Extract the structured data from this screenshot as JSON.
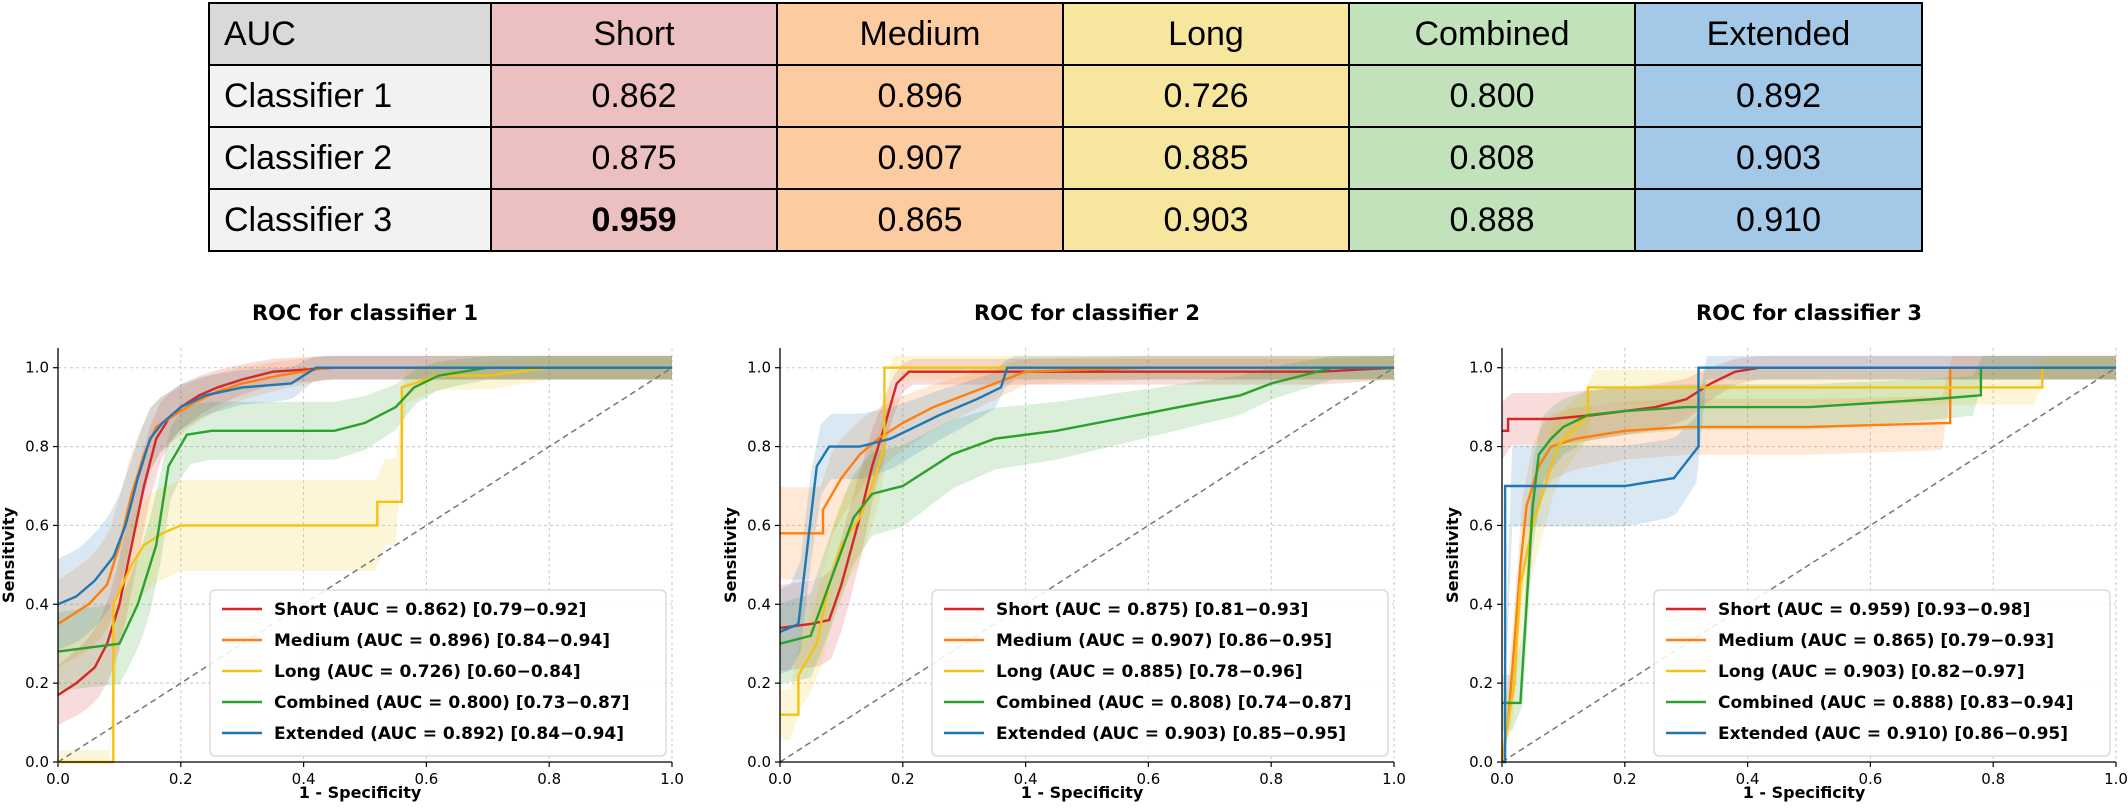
{
  "table": {
    "corner": "AUC",
    "columns": [
      {
        "label": "Short",
        "color": "#ecc0c1"
      },
      {
        "label": "Medium",
        "color": "#fdcba0"
      },
      {
        "label": "Long",
        "color": "#f7e79e"
      },
      {
        "label": "Combined",
        "color": "#c2e2bb"
      },
      {
        "label": "Extended",
        "color": "#a3c8e8"
      }
    ],
    "header_color": "#d9d9d9",
    "rowhead_color": "#f2f2f2",
    "rows": [
      {
        "label": "Classifier 1",
        "values": [
          "0.862",
          "0.896",
          "0.726",
          "0.800",
          "0.892"
        ],
        "bold_index": -1
      },
      {
        "label": "Classifier 2",
        "values": [
          "0.875",
          "0.907",
          "0.885",
          "0.808",
          "0.903"
        ],
        "bold_index": -1
      },
      {
        "label": "Classifier 3",
        "values": [
          "0.959",
          "0.865",
          "0.903",
          "0.888",
          "0.910"
        ],
        "bold_index": 0
      }
    ]
  },
  "chart_data": [
    {
      "type": "line",
      "title": "ROC for classifier 1",
      "xlabel": "1 - Specificity",
      "ylabel": "Sensitivity",
      "xlim": [
        0,
        1
      ],
      "ylim": [
        0,
        1.05
      ],
      "xticks": [
        "0.0",
        "0.2",
        "0.4",
        "0.6",
        "0.8",
        "1.0"
      ],
      "yticks": [
        "0.0",
        "0.2",
        "0.4",
        "0.6",
        "0.8",
        "1.0"
      ],
      "grid": true,
      "legend_position": "lower-right",
      "series": [
        {
          "name": "Short",
          "legend": "Short (AUC = 0.862) [0.79−0.92]",
          "color": "#d62728",
          "x": [
            0,
            0.03,
            0.06,
            0.08,
            0.1,
            0.12,
            0.14,
            0.16,
            0.18,
            0.2,
            0.23,
            0.26,
            0.3,
            0.35,
            0.45,
            1.0
          ],
          "y": [
            0.17,
            0.2,
            0.24,
            0.3,
            0.4,
            0.55,
            0.7,
            0.82,
            0.87,
            0.9,
            0.93,
            0.95,
            0.97,
            0.99,
            1.0,
            1.0
          ]
        },
        {
          "name": "Medium",
          "legend": "Medium (AUC = 0.896) [0.84−0.94]",
          "color": "#ff7f0e",
          "x": [
            0,
            0.02,
            0.05,
            0.08,
            0.1,
            0.12,
            0.14,
            0.16,
            0.19,
            0.22,
            0.26,
            0.3,
            0.36,
            0.44,
            1.0
          ],
          "y": [
            0.35,
            0.37,
            0.4,
            0.45,
            0.55,
            0.68,
            0.78,
            0.85,
            0.88,
            0.91,
            0.94,
            0.96,
            0.98,
            1.0,
            1.0
          ]
        },
        {
          "name": "Long",
          "legend": "Long (AUC = 0.726) [0.60−0.84]",
          "color": "#f5c211",
          "x": [
            0,
            0.09,
            0.09,
            0.12,
            0.14,
            0.17,
            0.2,
            0.2,
            0.52,
            0.52,
            0.56,
            0.56,
            0.62,
            0.7,
            0.8,
            1.0
          ],
          "y": [
            0,
            0,
            0.4,
            0.5,
            0.55,
            0.58,
            0.6,
            0.6,
            0.6,
            0.66,
            0.66,
            0.95,
            0.98,
            0.98,
            1.0,
            1.0
          ]
        },
        {
          "name": "Combined",
          "legend": "Combined (AUC = 0.800) [0.73−0.87]",
          "color": "#2ca02c",
          "x": [
            0,
            0.1,
            0.13,
            0.16,
            0.18,
            0.21,
            0.25,
            0.3,
            0.45,
            0.5,
            0.55,
            0.58,
            0.62,
            0.7,
            1.0
          ],
          "y": [
            0.28,
            0.3,
            0.4,
            0.55,
            0.75,
            0.83,
            0.84,
            0.84,
            0.84,
            0.86,
            0.9,
            0.95,
            0.98,
            1.0,
            1.0
          ]
        },
        {
          "name": "Extended",
          "legend": "Extended (AUC = 0.892) [0.84−0.94]",
          "color": "#1f77b4",
          "x": [
            0,
            0.03,
            0.06,
            0.09,
            0.11,
            0.13,
            0.15,
            0.17,
            0.2,
            0.24,
            0.3,
            0.38,
            0.42,
            1.0
          ],
          "y": [
            0.4,
            0.42,
            0.46,
            0.52,
            0.6,
            0.72,
            0.82,
            0.86,
            0.9,
            0.93,
            0.95,
            0.96,
            1.0,
            1.0
          ]
        }
      ]
    },
    {
      "type": "line",
      "title": "ROC for classifier 2",
      "xlabel": "1 - Specificity",
      "ylabel": "Sensitivity",
      "xlim": [
        0,
        1
      ],
      "ylim": [
        0,
        1.05
      ],
      "xticks": [
        "0.0",
        "0.2",
        "0.4",
        "0.6",
        "0.8",
        "1.0"
      ],
      "yticks": [
        "0.0",
        "0.2",
        "0.4",
        "0.6",
        "0.8",
        "1.0"
      ],
      "grid": true,
      "legend_position": "lower-right",
      "series": [
        {
          "name": "Short",
          "legend": "Short (AUC = 0.875) [0.81−0.93]",
          "color": "#d62728",
          "x": [
            0,
            0.05,
            0.08,
            0.1,
            0.13,
            0.15,
            0.17,
            0.19,
            0.21,
            0.25,
            0.4,
            0.88,
            1.0
          ],
          "y": [
            0.34,
            0.35,
            0.36,
            0.45,
            0.62,
            0.75,
            0.85,
            0.96,
            0.99,
            0.99,
            0.99,
            0.99,
            1.0
          ]
        },
        {
          "name": "Medium",
          "legend": "Medium (AUC = 0.907) [0.86−0.95]",
          "color": "#ff7f0e",
          "x": [
            0,
            0.07,
            0.07,
            0.1,
            0.13,
            0.16,
            0.2,
            0.25,
            0.3,
            0.35,
            0.4,
            0.6,
            1.0
          ],
          "y": [
            0.58,
            0.58,
            0.64,
            0.72,
            0.78,
            0.82,
            0.86,
            0.9,
            0.93,
            0.96,
            0.99,
            1.0,
            1.0
          ]
        },
        {
          "name": "Long",
          "legend": "Long (AUC = 0.885) [0.78−0.96]",
          "color": "#f5c211",
          "x": [
            0,
            0.03,
            0.03,
            0.06,
            0.08,
            0.1,
            0.13,
            0.15,
            0.17,
            0.17,
            0.4,
            1.0
          ],
          "y": [
            0.12,
            0.12,
            0.22,
            0.3,
            0.45,
            0.55,
            0.62,
            0.7,
            0.8,
            1.0,
            1.0,
            1.0
          ]
        },
        {
          "name": "Combined",
          "legend": "Combined (AUC = 0.808) [0.74−0.87]",
          "color": "#2ca02c",
          "x": [
            0,
            0.05,
            0.08,
            0.12,
            0.15,
            0.2,
            0.28,
            0.35,
            0.45,
            0.55,
            0.65,
            0.75,
            0.8,
            0.85,
            0.9,
            1.0
          ],
          "y": [
            0.3,
            0.32,
            0.45,
            0.62,
            0.68,
            0.7,
            0.78,
            0.82,
            0.84,
            0.87,
            0.9,
            0.93,
            0.96,
            0.98,
            1.0,
            1.0
          ]
        },
        {
          "name": "Extended",
          "legend": "Extended (AUC = 0.903) [0.85−0.95]",
          "color": "#1f77b4",
          "x": [
            0,
            0.03,
            0.06,
            0.08,
            0.13,
            0.18,
            0.22,
            0.26,
            0.32,
            0.36,
            0.37,
            1.0
          ],
          "y": [
            0.33,
            0.35,
            0.75,
            0.8,
            0.8,
            0.82,
            0.85,
            0.88,
            0.92,
            0.95,
            1.0,
            1.0
          ]
        }
      ]
    },
    {
      "type": "line",
      "title": "ROC for classifier 3",
      "xlabel": "1 - Specificity",
      "ylabel": "Sensitivity",
      "xlim": [
        0,
        1
      ],
      "ylim": [
        0,
        1.05
      ],
      "xticks": [
        "0.0",
        "0.2",
        "0.4",
        "0.6",
        "0.8",
        "1.0"
      ],
      "yticks": [
        "0.0",
        "0.2",
        "0.4",
        "0.6",
        "0.8",
        "1.0"
      ],
      "grid": true,
      "legend_position": "lower-right",
      "series": [
        {
          "name": "Short",
          "legend": "Short (AUC = 0.959) [0.93−0.98]",
          "color": "#d62728",
          "x": [
            0,
            0.01,
            0.01,
            0.04,
            0.08,
            0.15,
            0.25,
            0.3,
            0.34,
            0.38,
            0.42,
            1.0
          ],
          "y": [
            0.84,
            0.84,
            0.87,
            0.87,
            0.87,
            0.88,
            0.9,
            0.92,
            0.96,
            0.99,
            1.0,
            1.0
          ]
        },
        {
          "name": "Medium",
          "legend": "Medium (AUC = 0.865) [0.79−0.93]",
          "color": "#ff7f0e",
          "x": [
            0,
            0.01,
            0.02,
            0.03,
            0.04,
            0.06,
            0.08,
            0.12,
            0.2,
            0.3,
            0.5,
            0.73,
            0.73,
            1.0
          ],
          "y": [
            0,
            0.1,
            0.3,
            0.5,
            0.65,
            0.75,
            0.8,
            0.82,
            0.84,
            0.85,
            0.85,
            0.86,
            1.0,
            1.0
          ]
        },
        {
          "name": "Long",
          "legend": "Long (AUC = 0.903) [0.82−0.97]",
          "color": "#f5c211",
          "x": [
            0,
            0.02,
            0.03,
            0.05,
            0.07,
            0.09,
            0.12,
            0.14,
            0.14,
            0.3,
            0.88,
            0.88,
            1.0
          ],
          "y": [
            0,
            0.2,
            0.45,
            0.6,
            0.7,
            0.8,
            0.85,
            0.88,
            0.95,
            0.95,
            0.95,
            1.0,
            1.0
          ]
        },
        {
          "name": "Combined",
          "legend": "Combined (AUC = 0.888) [0.83−0.94]",
          "color": "#2ca02c",
          "x": [
            0,
            0.03,
            0.04,
            0.05,
            0.06,
            0.08,
            0.1,
            0.14,
            0.2,
            0.3,
            0.5,
            0.7,
            0.78,
            0.78,
            1.0
          ],
          "y": [
            0.15,
            0.15,
            0.4,
            0.65,
            0.78,
            0.82,
            0.85,
            0.88,
            0.89,
            0.9,
            0.9,
            0.92,
            0.93,
            1.0,
            1.0
          ]
        },
        {
          "name": "Extended",
          "legend": "Extended (AUC = 0.910) [0.86−0.95]",
          "color": "#1f77b4",
          "x": [
            0,
            0.005,
            0.005,
            0.2,
            0.28,
            0.3,
            0.31,
            0.32,
            0.32,
            1.0
          ],
          "y": [
            0,
            0,
            0.7,
            0.7,
            0.72,
            0.76,
            0.78,
            0.8,
            1.0,
            1.0
          ]
        }
      ]
    }
  ]
}
